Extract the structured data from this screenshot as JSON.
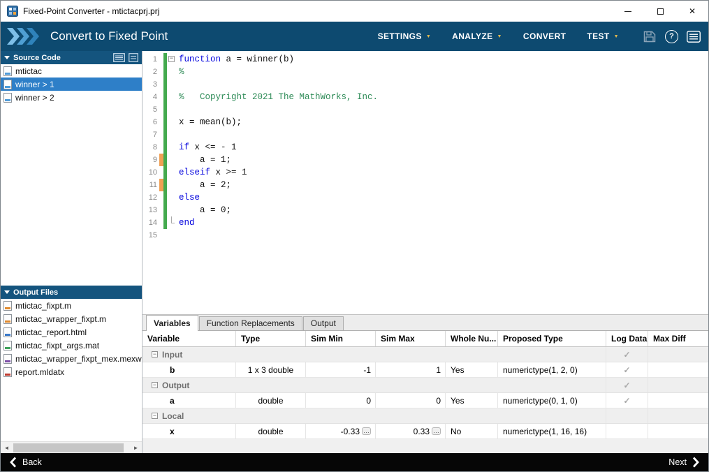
{
  "window": {
    "title": "Fixed-Point Converter - mtictacprj.prj"
  },
  "toolbar": {
    "title": "Convert to Fixed Point",
    "menus": [
      {
        "label": "SETTINGS",
        "dropdown": true
      },
      {
        "label": "ANALYZE",
        "dropdown": true
      },
      {
        "label": "CONVERT",
        "dropdown": false
      },
      {
        "label": "TEST",
        "dropdown": true
      }
    ]
  },
  "sidebar": {
    "source_panel": {
      "title": "Source Code",
      "items": [
        {
          "label": "mtictac",
          "selected": false,
          "icon": "function-file-icon"
        },
        {
          "label": "winner > 1",
          "selected": true,
          "icon": "function-file-icon"
        },
        {
          "label": "winner > 2",
          "selected": false,
          "icon": "function-file-icon"
        }
      ]
    },
    "output_panel": {
      "title": "Output Files",
      "items": [
        {
          "label": "mtictac_fixpt.m",
          "icon": "matlab-file-icon"
        },
        {
          "label": "mtictac_wrapper_fixpt.m",
          "icon": "matlab-file-icon"
        },
        {
          "label": "mtictac_report.html",
          "icon": "html-file-icon"
        },
        {
          "label": "mtictac_fixpt_args.mat",
          "icon": "mat-file-icon"
        },
        {
          "label": "mtictac_wrapper_fixpt_mex.mexw",
          "icon": "mex-file-icon"
        },
        {
          "label": "report.mldatx",
          "icon": "mldatx-file-icon"
        }
      ]
    }
  },
  "editor": {
    "lines": [
      {
        "n": "1",
        "fold": "start",
        "cover": "green",
        "s": [
          [
            "kw",
            "function"
          ],
          [
            "p",
            " a = winner(b)"
          ]
        ]
      },
      {
        "n": "2",
        "cover": "green",
        "s": [
          [
            "cm",
            "%"
          ]
        ]
      },
      {
        "n": "3",
        "cover": "green",
        "s": []
      },
      {
        "n": "4",
        "cover": "green",
        "s": [
          [
            "cm",
            "%   Copyright 2021 The MathWorks, Inc."
          ]
        ]
      },
      {
        "n": "5",
        "cover": "green",
        "s": []
      },
      {
        "n": "6",
        "cover": "green",
        "s": [
          [
            "p",
            "x = mean(b);"
          ]
        ]
      },
      {
        "n": "7",
        "cover": "green",
        "s": []
      },
      {
        "n": "8",
        "cover": "green",
        "s": [
          [
            "kw",
            "if"
          ],
          [
            "p",
            " x <= - 1"
          ]
        ]
      },
      {
        "n": "9",
        "cover": "green",
        "mark": true,
        "s": [
          [
            "p",
            "    a = 1;"
          ]
        ]
      },
      {
        "n": "10",
        "cover": "green",
        "s": [
          [
            "kw",
            "elseif"
          ],
          [
            "p",
            " x >= 1"
          ]
        ]
      },
      {
        "n": "11",
        "cover": "green",
        "mark": true,
        "s": [
          [
            "p",
            "    a = 2;"
          ]
        ]
      },
      {
        "n": "12",
        "cover": "green",
        "s": [
          [
            "kw",
            "else"
          ]
        ]
      },
      {
        "n": "13",
        "cover": "green",
        "s": [
          [
            "p",
            "    a = 0;"
          ]
        ]
      },
      {
        "n": "14",
        "cover": "green",
        "fold": "end",
        "s": [
          [
            "kw",
            "end"
          ]
        ]
      },
      {
        "n": "15",
        "cover": "none",
        "s": []
      }
    ]
  },
  "bottom_panel": {
    "tabs": [
      {
        "label": "Variables",
        "active": true
      },
      {
        "label": "Function Replacements",
        "active": false
      },
      {
        "label": "Output",
        "active": false
      }
    ],
    "table": {
      "columns": [
        "Variable",
        "Type",
        "Sim Min",
        "Sim Max",
        "Whole Nu...",
        "Proposed Type",
        "Log Data",
        "Max Diff"
      ],
      "rows": [
        {
          "kind": "group",
          "label": "Input",
          "log_check": true
        },
        {
          "kind": "data",
          "variable": "b",
          "type": "1 x 3 double",
          "sim_min": "-1",
          "sim_max": "1",
          "whole_number": "Yes",
          "proposed_type": "numerictype(1, 2, 0)",
          "log_check": true,
          "max_diff": "",
          "min_more": false,
          "max_more": false
        },
        {
          "kind": "group",
          "label": "Output",
          "log_check": true
        },
        {
          "kind": "data",
          "variable": "a",
          "type": "double",
          "sim_min": "0",
          "sim_max": "0",
          "whole_number": "Yes",
          "proposed_type": "numerictype(0, 1, 0)",
          "log_check": true,
          "max_diff": "",
          "min_more": false,
          "max_more": false
        },
        {
          "kind": "group",
          "label": "Local",
          "log_check": false
        },
        {
          "kind": "data",
          "variable": "x",
          "type": "double",
          "sim_min": "-0.33",
          "sim_max": "0.33",
          "whole_number": "No",
          "proposed_type": "numerictype(1, 16, 16)",
          "log_check": false,
          "max_diff": "",
          "min_more": true,
          "max_more": true
        }
      ]
    }
  },
  "footer": {
    "back_label": "Back",
    "next_label": "Next"
  },
  "icons": {
    "dropdown_caret": "▼",
    "fold_collapse": "−",
    "collapse_group": "−",
    "check": "✓",
    "more_ellipsis": "…",
    "scroll_left": "◄",
    "scroll_right": "►",
    "help": "?"
  },
  "colors": {
    "toolbar_blue": "#0d4a70",
    "panel_blue": "#14547e",
    "select_blue": "#2e7fc8",
    "keyword_blue": "#0000dd",
    "comment_green": "#2e8b57",
    "coverage_green": "#44aa4e",
    "marker_orange": "#f0a054",
    "caret_gold": "#e0b84f",
    "footer_bg": "#060606"
  }
}
